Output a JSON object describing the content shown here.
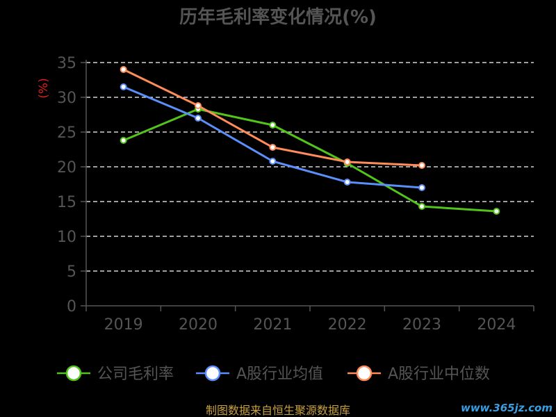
{
  "chart_data": {
    "type": "line",
    "title": "历年毛利率变化情况(%)",
    "ylabel": "(%)",
    "xlabel": "",
    "categories": [
      "2019",
      "2020",
      "2021",
      "2022",
      "2023",
      "2024"
    ],
    "ylim": [
      0,
      35
    ],
    "yticks": [
      0,
      5,
      10,
      15,
      20,
      25,
      30,
      35
    ],
    "grid": true,
    "legend_position": "bottom",
    "series": [
      {
        "name": "公司毛利率",
        "color": "#52c41a",
        "values": [
          23.8,
          28.3,
          26.0,
          20.5,
          14.3,
          13.6
        ]
      },
      {
        "name": "A股行业均值",
        "color": "#5b8ff9",
        "values": [
          31.5,
          27.0,
          20.8,
          17.8,
          17.0,
          null
        ]
      },
      {
        "name": "A股行业中位数",
        "color": "#ff8c5a",
        "values": [
          34.0,
          28.8,
          22.8,
          20.7,
          20.2,
          null
        ]
      }
    ]
  },
  "footer": {
    "source": "制图数据来自恒生聚源数据库"
  },
  "watermark": "www.365jz.com",
  "colors": {
    "background": "#000000",
    "title": "#555555",
    "axis": "#555555",
    "tick_label": "#555555",
    "ylabel": "#e0201a",
    "grid": "#ffffff",
    "source": "#c8a23c",
    "watermark": "#3a9ee0"
  }
}
